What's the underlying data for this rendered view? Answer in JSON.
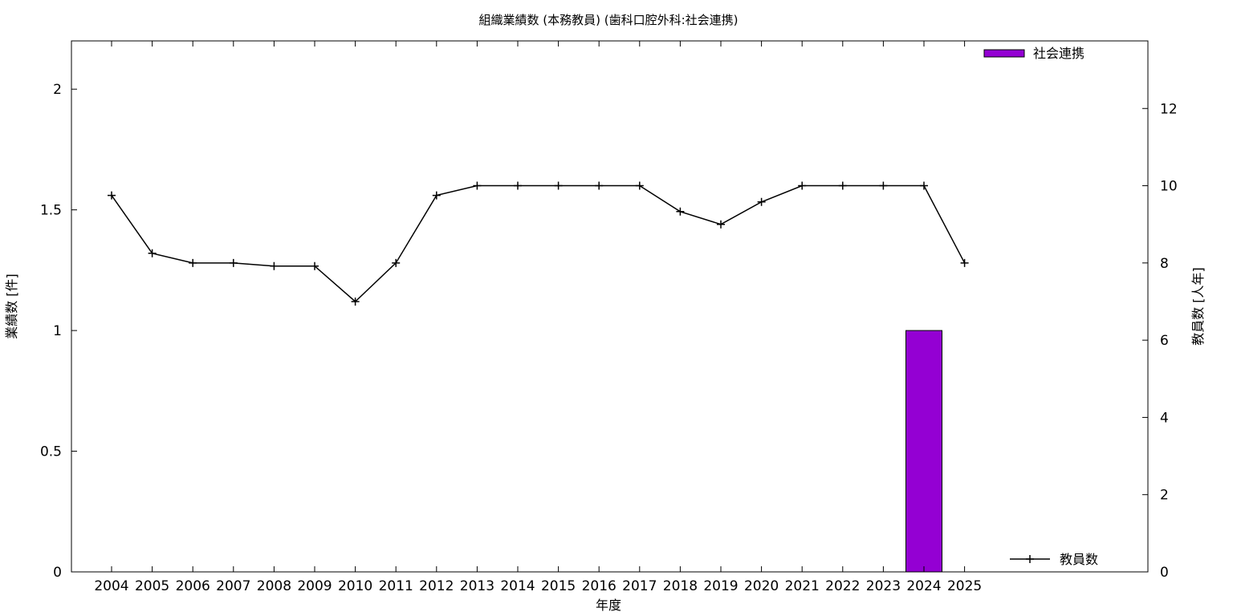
{
  "chart_data": {
    "type": "bar+line",
    "title": "組織業績数 (本務教員) (歯科口腔外科:社会連携)",
    "xlabel": "年度",
    "ylabel_left": "業績数 [件]",
    "ylabel_right": "教員数 [人年]",
    "categories": [
      "2004",
      "2005",
      "2006",
      "2007",
      "2008",
      "2009",
      "2010",
      "2011",
      "2012",
      "2013",
      "2014",
      "2015",
      "2016",
      "2017",
      "2018",
      "2019",
      "2020",
      "2021",
      "2022",
      "2023",
      "2024",
      "2025"
    ],
    "ylim_left": [
      0,
      2.2
    ],
    "yticks_left": [
      {
        "v": 0,
        "label": "0"
      },
      {
        "v": 0.5,
        "label": "0.5"
      },
      {
        "v": 1,
        "label": "1"
      },
      {
        "v": 1.5,
        "label": "1.5"
      },
      {
        "v": 2,
        "label": "2"
      }
    ],
    "ylim_right": [
      0,
      13.75
    ],
    "yticks_right": [
      {
        "v": 0,
        "label": "0"
      },
      {
        "v": 2,
        "label": "2"
      },
      {
        "v": 4,
        "label": "4"
      },
      {
        "v": 6,
        "label": "6"
      },
      {
        "v": 8,
        "label": "8"
      },
      {
        "v": 10,
        "label": "10"
      },
      {
        "v": 12,
        "label": "12"
      }
    ],
    "bar_series": {
      "name": "社会連携",
      "color": "#9400d3",
      "values": [
        0,
        0,
        0,
        0,
        0,
        0,
        0,
        0,
        0,
        0,
        0,
        0,
        0,
        0,
        0,
        0,
        0,
        0,
        0,
        0,
        1,
        0
      ]
    },
    "line_series": {
      "name": "教員数",
      "color": "#000000",
      "values": [
        9.75,
        8.25,
        8.0,
        8.0,
        7.92,
        7.92,
        7.0,
        8.0,
        9.75,
        10.0,
        10.0,
        10.0,
        10.0,
        10.0,
        9.33,
        9.0,
        9.58,
        10.0,
        10.0,
        10.0,
        10.0,
        8.0
      ]
    },
    "grid": false,
    "legend": {
      "bar_position": "top-right",
      "line_position": "bottom-right"
    }
  }
}
